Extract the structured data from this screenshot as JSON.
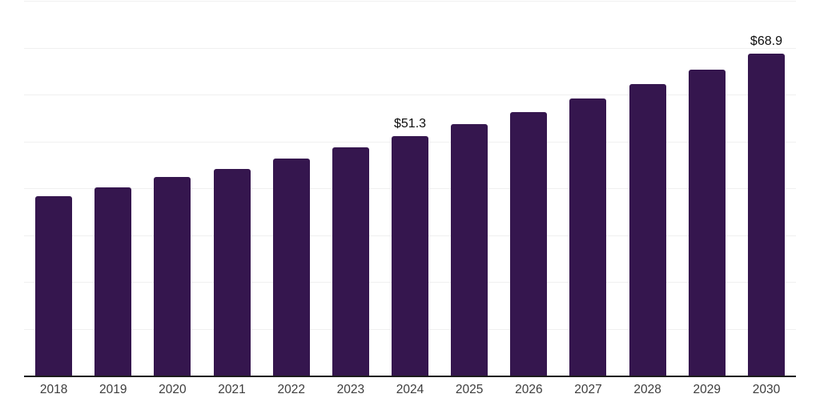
{
  "chart_data": {
    "type": "bar",
    "title": "",
    "xlabel": "",
    "ylabel": "",
    "categories": [
      "2018",
      "2019",
      "2020",
      "2021",
      "2022",
      "2023",
      "2024",
      "2025",
      "2026",
      "2027",
      "2028",
      "2029",
      "2030"
    ],
    "values": [
      38.5,
      40.4,
      42.5,
      44.3,
      46.5,
      48.9,
      51.3,
      53.8,
      56.4,
      59.3,
      62.4,
      65.5,
      68.9
    ],
    "data_labels": [
      "",
      "",
      "",
      "",
      "",
      "",
      "$51.3",
      "",
      "",
      "",
      "",
      "",
      "$68.9"
    ],
    "ylim": [
      0,
      80
    ],
    "gridline_step": 10,
    "grid": true,
    "legend": false,
    "colors": {
      "bar": "#35164e",
      "gridline": "#f0f0f0",
      "axis": "#1c1c1c",
      "tick_label": "#3d3d3d",
      "value_label": "#0d0d0d",
      "background": "#ffffff"
    }
  }
}
